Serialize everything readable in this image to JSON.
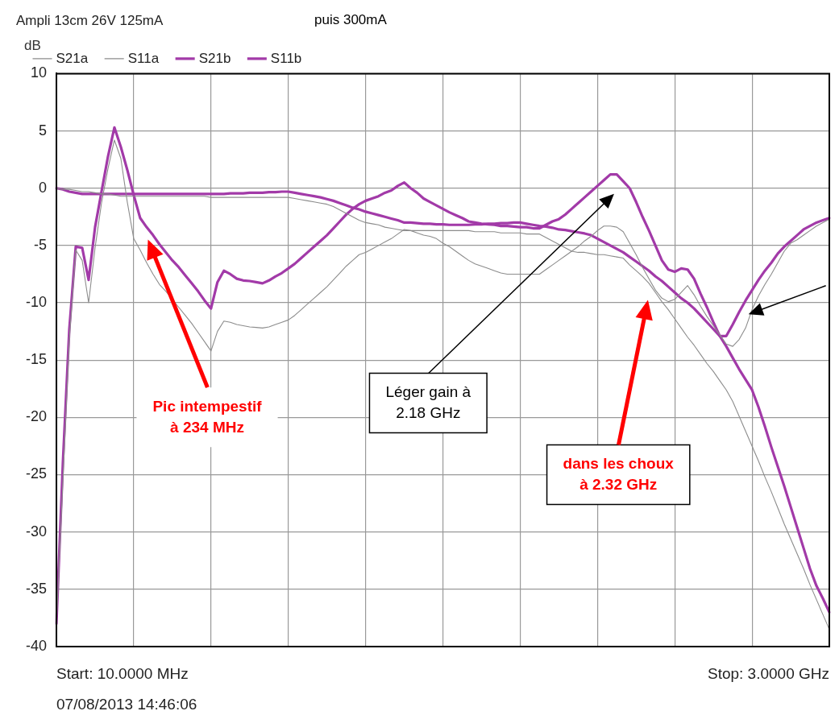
{
  "chart_data": {
    "type": "line",
    "title": "Ampli 13cm 26V 125mA",
    "subtitle": "puis 300mA",
    "ylabel": "dB",
    "categories": [
      null,
      null,
      null,
      null,
      null,
      null,
      null,
      null,
      null,
      null,
      null,
      null,
      null,
      null,
      null,
      null,
      null,
      null,
      null,
      null,
      null,
      null,
      null,
      null,
      null,
      null,
      null,
      null,
      null,
      null,
      null,
      null,
      null,
      null,
      null,
      null,
      null,
      null,
      null,
      null,
      null,
      null,
      null,
      null,
      null,
      null,
      null,
      null,
      null,
      null,
      null,
      null,
      null,
      null,
      null,
      null,
      null,
      null,
      null,
      null,
      null,
      null,
      null,
      null,
      null,
      null,
      null,
      null,
      null,
      null,
      null,
      null,
      null,
      null,
      null,
      null,
      null,
      null,
      null,
      null,
      null,
      null,
      null,
      null,
      null,
      null,
      null,
      null,
      null,
      null,
      null,
      null,
      null,
      null,
      null,
      null,
      null,
      null,
      null,
      null,
      null,
      null,
      null,
      null,
      null,
      null,
      null,
      null,
      null,
      null,
      null,
      null,
      null,
      null,
      null,
      null,
      null,
      null,
      null,
      null,
      null
    ],
    "ylim": [
      -40,
      10
    ],
    "yticks": [
      -40,
      -35,
      -30,
      -25,
      -20,
      -15,
      -10,
      -5,
      0,
      5,
      10
    ],
    "tick_labels": "y",
    "grid": true,
    "legend": "top left",
    "marker": "none",
    "line_style": "solid",
    "series": [
      {
        "name": "S21a",
        "color": "#8c8c8c",
        "values": [
          -38,
          -25.6,
          -13.2,
          -5.4,
          -6.3,
          -10,
          -5.2,
          -1.3,
          1.7,
          4.2,
          2.6,
          -1.2,
          -4.4,
          -5.4,
          -6.5,
          -7.5,
          -8.4,
          -9,
          -9.7,
          -10.4,
          -11.1,
          -11.8,
          -12.6,
          -13.4,
          -14.2,
          -12.5,
          -11.6,
          -11.7,
          -11.9,
          -12,
          -12.1,
          -12.15,
          -12.2,
          -12.1,
          -11.9,
          -11.7,
          -11.5,
          -11.1,
          -10.6,
          -10.1,
          -9.6,
          -9.1,
          -8.6,
          -8,
          -7.4,
          -6.8,
          -6.3,
          -5.8,
          -5.6,
          -5.3,
          -5,
          -4.7,
          -4.4,
          -4,
          -3.6,
          -3.7,
          -3.9,
          -4.1,
          -4.2,
          -4.4,
          -4.8,
          -5.1,
          -5.5,
          -5.9,
          -6.3,
          -6.6,
          -6.8,
          -7,
          -7.2,
          -7.4,
          -7.5,
          -7.5,
          -7.5,
          -7.5,
          -7.5,
          -7.5,
          -7.1,
          -6.7,
          -6.3,
          -5.9,
          -5.5,
          -5.1,
          -4.6,
          -4.2,
          -3.7,
          -3.3,
          -3.3,
          -3.4,
          -3.8,
          -4.8,
          -5.8,
          -6.9,
          -7.9,
          -8.9,
          -9.6,
          -9.9,
          -9.7,
          -9.1,
          -8.5,
          -9.3,
          -10.3,
          -11.2,
          -12,
          -12.8,
          -13.6,
          -13.8,
          -13.2,
          -12.2,
          -10.6,
          -9.4,
          -8.4,
          -7.5,
          -6.5,
          -5.5,
          -4.8,
          -4.5,
          -4.1,
          -3.7,
          -3.3,
          -3,
          -2.7
        ]
      },
      {
        "name": "S11a",
        "color": "#8c8c8c",
        "values": [
          0,
          -0.1,
          -0.1,
          -0.2,
          -0.3,
          -0.3,
          -0.4,
          -0.5,
          -0.5,
          -0.6,
          -0.7,
          -0.7,
          -0.7,
          -0.7,
          -0.7,
          -0.7,
          -0.7,
          -0.7,
          -0.7,
          -0.7,
          -0.7,
          -0.7,
          -0.7,
          -0.7,
          -0.8,
          -0.8,
          -0.8,
          -0.8,
          -0.8,
          -0.8,
          -0.8,
          -0.8,
          -0.8,
          -0.8,
          -0.8,
          -0.8,
          -0.8,
          -0.9,
          -1,
          -1.1,
          -1.2,
          -1.3,
          -1.4,
          -1.6,
          -1.9,
          -2.2,
          -2.5,
          -2.8,
          -3,
          -3.1,
          -3.2,
          -3.4,
          -3.5,
          -3.6,
          -3.7,
          -3.7,
          -3.7,
          -3.7,
          -3.7,
          -3.7,
          -3.7,
          -3.7,
          -3.7,
          -3.7,
          -3.7,
          -3.8,
          -3.8,
          -3.8,
          -3.8,
          -3.9,
          -3.9,
          -3.9,
          -3.9,
          -4,
          -4,
          -4,
          -4.3,
          -4.6,
          -4.9,
          -5.2,
          -5.5,
          -5.6,
          -5.6,
          -5.7,
          -5.8,
          -5.8,
          -5.9,
          -6,
          -6.1,
          -6.7,
          -7.2,
          -7.7,
          -8.3,
          -9.1,
          -9.9,
          -10.6,
          -11.4,
          -12.2,
          -13,
          -13.7,
          -14.5,
          -15.3,
          -16,
          -16.8,
          -17.6,
          -18.6,
          -19.9,
          -21.2,
          -22.5,
          -23.8,
          -25.2,
          -26.5,
          -27.9,
          -29.3,
          -30.6,
          -31.9,
          -33.2,
          -34.6,
          -35.9,
          -37.2,
          -38.5
        ]
      },
      {
        "name": "S21b",
        "color": "#a23aa8",
        "values": [
          -38,
          -24,
          -12.3,
          -5.1,
          -5.2,
          -8,
          -3.4,
          -0.3,
          2.75,
          5.3,
          3.6,
          1.6,
          -0.6,
          -2.6,
          -3.4,
          -4.1,
          -4.9,
          -5.6,
          -6.3,
          -6.9,
          -7.6,
          -8.3,
          -9,
          -9.8,
          -10.5,
          -8.2,
          -7.2,
          -7.5,
          -7.9,
          -8.05,
          -8.1,
          -8.2,
          -8.3,
          -8.05,
          -7.7,
          -7.4,
          -7,
          -6.6,
          -6.1,
          -5.6,
          -5.1,
          -4.6,
          -4.1,
          -3.5,
          -2.9,
          -2.3,
          -1.8,
          -1.4,
          -1.1,
          -0.9,
          -0.7,
          -0.4,
          -0.2,
          0.2,
          0.5,
          0,
          -0.4,
          -0.9,
          -1.2,
          -1.5,
          -1.8,
          -2.1,
          -2.35,
          -2.6,
          -2.9,
          -3,
          -3.1,
          -3.15,
          -3.2,
          -3.3,
          -3.3,
          -3.35,
          -3.4,
          -3.4,
          -3.5,
          -3.5,
          -3.2,
          -2.9,
          -2.7,
          -2.3,
          -1.8,
          -1.3,
          -0.8,
          -0.3,
          0.2,
          0.7,
          1.2,
          1.2,
          0.6,
          0,
          -1.2,
          -2.5,
          -3.7,
          -5,
          -6.3,
          -7.1,
          -7.3,
          -7,
          -7.1,
          -7.9,
          -9.2,
          -10.4,
          -11.7,
          -12.9,
          -12.9,
          -11.9,
          -10.8,
          -9.8,
          -8.9,
          -8,
          -7.2,
          -6.5,
          -5.7,
          -5.1,
          -4.6,
          -4.1,
          -3.6,
          -3.3,
          -3,
          -2.8,
          -2.6
        ]
      },
      {
        "name": "S11b",
        "color": "#a23aa8",
        "values": [
          0,
          -0.1,
          -0.3,
          -0.4,
          -0.5,
          -0.5,
          -0.5,
          -0.5,
          -0.5,
          -0.5,
          -0.5,
          -0.5,
          -0.5,
          -0.5,
          -0.5,
          -0.5,
          -0.5,
          -0.5,
          -0.5,
          -0.5,
          -0.5,
          -0.5,
          -0.5,
          -0.5,
          -0.5,
          -0.5,
          -0.5,
          -0.45,
          -0.45,
          -0.45,
          -0.4,
          -0.4,
          -0.4,
          -0.35,
          -0.35,
          -0.3,
          -0.3,
          -0.4,
          -0.5,
          -0.6,
          -0.7,
          -0.8,
          -0.95,
          -1.1,
          -1.3,
          -1.5,
          -1.7,
          -1.85,
          -2.05,
          -2.2,
          -2.35,
          -2.5,
          -2.65,
          -2.8,
          -3,
          -3,
          -3.05,
          -3.1,
          -3.1,
          -3.15,
          -3.15,
          -3.2,
          -3.2,
          -3.2,
          -3.2,
          -3.15,
          -3.15,
          -3.1,
          -3.1,
          -3.05,
          -3.05,
          -3,
          -3,
          -3.1,
          -3.2,
          -3.3,
          -3.35,
          -3.45,
          -3.6,
          -3.65,
          -3.75,
          -3.85,
          -3.95,
          -4.1,
          -4.4,
          -4.7,
          -5,
          -5.3,
          -5.6,
          -6,
          -6.4,
          -6.8,
          -7.2,
          -7.7,
          -8.1,
          -8.6,
          -9.1,
          -9.6,
          -10,
          -10.5,
          -11.1,
          -11.7,
          -12.3,
          -12.9,
          -13.8,
          -14.8,
          -15.8,
          -16.7,
          -17.6,
          -19.1,
          -20.8,
          -22.6,
          -24.3,
          -26,
          -27.8,
          -29.6,
          -31.4,
          -33.2,
          -34.7,
          -35.8,
          -37
        ]
      }
    ],
    "annotations": [
      "Start: 10.0000 MHz",
      "Stop: 3.0000 GHz",
      "07/08/2013 14:46:06",
      "Pic intempestif\nà 234 MHz",
      "Léger gain à\n2.18 GHz",
      "dans les choux\nà 2.32 GHz"
    ]
  }
}
